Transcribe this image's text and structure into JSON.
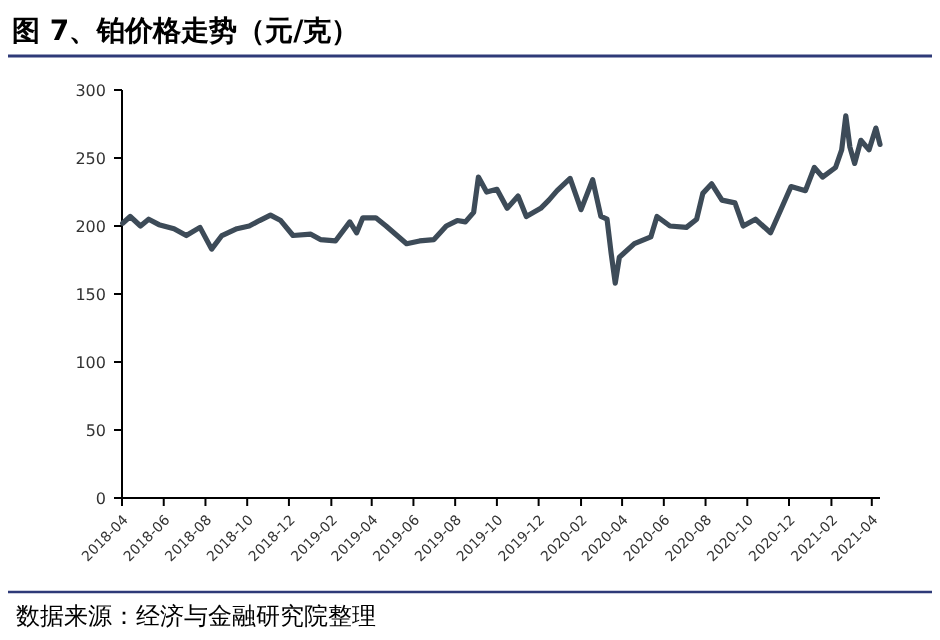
{
  "chart_data": {
    "type": "line",
    "title": "图 7、铂价格走势（元/克）",
    "annotations": [
      "数据来源：经济与金融研究院整理"
    ],
    "x": [
      "2018-04-02",
      "2018-04-13",
      "2018-04-28",
      "2018-05-10",
      "2018-05-25",
      "2018-06-16",
      "2018-07-04",
      "2018-07-24",
      "2018-08-10",
      "2018-08-25",
      "2018-09-16",
      "2018-10-04",
      "2018-10-19",
      "2018-11-04",
      "2018-11-19",
      "2018-12-07",
      "2019-01-02",
      "2019-01-16",
      "2019-02-07",
      "2019-02-28",
      "2019-03-10",
      "2019-03-19",
      "2019-04-07",
      "2019-04-22",
      "2019-05-22",
      "2019-06-10",
      "2019-07-01",
      "2019-07-19",
      "2019-08-04",
      "2019-08-16",
      "2019-08-28",
      "2019-09-04",
      "2019-09-16",
      "2019-10-01",
      "2019-10-16",
      "2019-11-01",
      "2019-11-13",
      "2019-12-04",
      "2019-12-16",
      "2019-12-28",
      "2020-01-16",
      "2020-02-01",
      "2020-02-18",
      "2020-03-01",
      "2020-03-10",
      "2020-03-16",
      "2020-03-22",
      "2020-03-28",
      "2020-04-19",
      "2020-05-13",
      "2020-05-22",
      "2020-06-10",
      "2020-07-04",
      "2020-07-19",
      "2020-07-28",
      "2020-08-10",
      "2020-08-25",
      "2020-09-13",
      "2020-09-25",
      "2020-10-13",
      "2020-11-04",
      "2020-11-19",
      "2020-12-04",
      "2020-12-25",
      "2021-01-07",
      "2021-01-19",
      "2021-02-07",
      "2021-02-16",
      "2021-02-22",
      "2021-02-28",
      "2021-03-07",
      "2021-03-16",
      "2021-03-28",
      "2021-04-07",
      "2021-04-13"
    ],
    "series": [
      {
        "color": "#3d4b58",
        "values": [
          202,
          207,
          200,
          205,
          201,
          198,
          193,
          199,
          183,
          193,
          198,
          200,
          204,
          208,
          204,
          193,
          194,
          190,
          189,
          203,
          195,
          206,
          206,
          200,
          187,
          189,
          190,
          200,
          204,
          203,
          210,
          236,
          225,
          227,
          213,
          222,
          207,
          213,
          219,
          226,
          235,
          212,
          234,
          207,
          205,
          180,
          158,
          177,
          187,
          192,
          207,
          200,
          199,
          205,
          224,
          231,
          219,
          217,
          200,
          205,
          195,
          212,
          229,
          226,
          243,
          236,
          243,
          256,
          281,
          258,
          246,
          263,
          256,
          272,
          260
        ]
      }
    ],
    "xlim": [
      "2018-04-01",
      "2021-04-13"
    ],
    "xticks": [
      "2018-04",
      "2018-06",
      "2018-08",
      "2018-10",
      "2018-12",
      "2019-02",
      "2019-04",
      "2019-06",
      "2019-08",
      "2019-10",
      "2019-12",
      "2020-02",
      "2020-04",
      "2020-06",
      "2020-08",
      "2020-10",
      "2020-12",
      "2021-02",
      "2021-04"
    ],
    "ylim": [
      0,
      300
    ],
    "yticks": [
      0,
      50,
      100,
      150,
      200,
      250,
      300
    ],
    "grid": false,
    "line_style": "solid",
    "marker": "none"
  }
}
